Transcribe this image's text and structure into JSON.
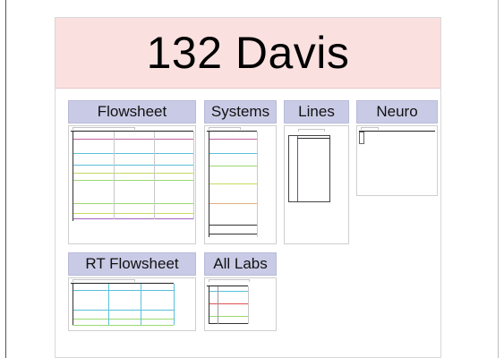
{
  "header": {
    "title": "132 Davis"
  },
  "tiles": [
    {
      "label": "Flowsheet"
    },
    {
      "label": "Systems"
    },
    {
      "label": "Lines"
    },
    {
      "label": "Neuro"
    },
    {
      "label": "RT Flowsheet"
    },
    {
      "label": "All Labs"
    }
  ]
}
